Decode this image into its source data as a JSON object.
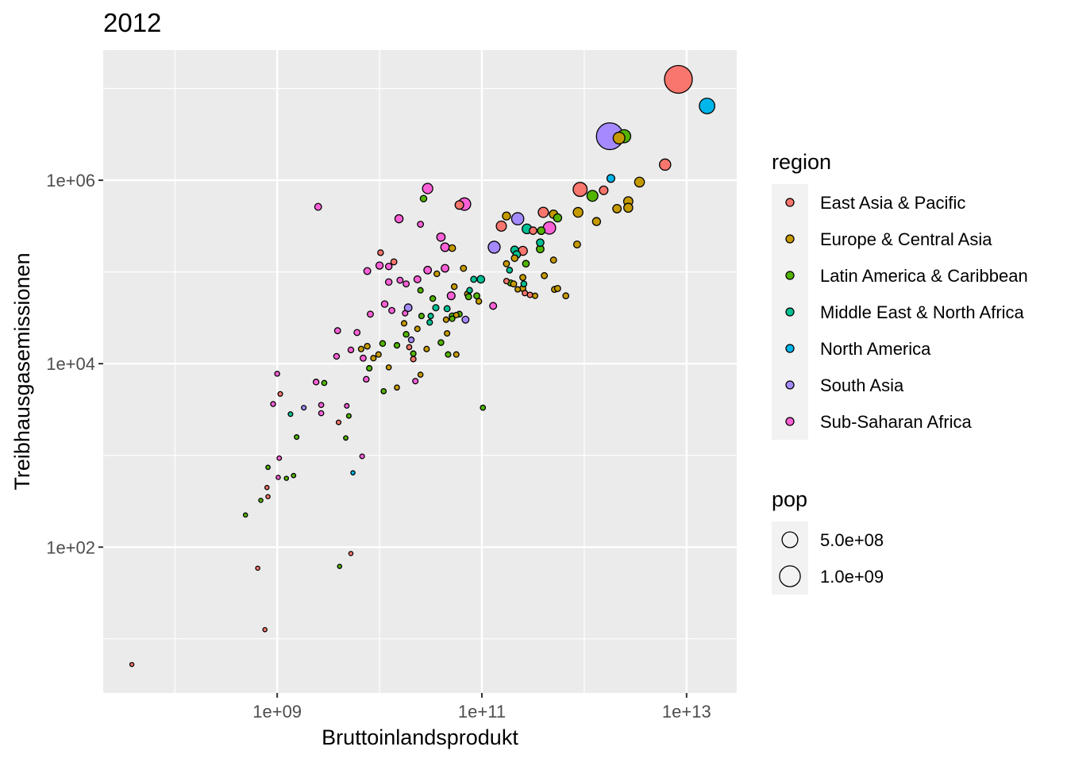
{
  "chart_data": {
    "type": "scatter",
    "title": "2012",
    "xlabel": "Bruttoinlandsprodukt",
    "ylabel": "Treibhausgasemissionen",
    "x_scale": "log10",
    "y_scale": "log10",
    "xlim_log10": [
      7.3,
      13.49
    ],
    "ylim_log10": [
      0.41,
      7.42
    ],
    "x_ticks": [
      {
        "log10": 9,
        "label": "1e+09"
      },
      {
        "log10": 11,
        "label": "1e+11"
      },
      {
        "log10": 13,
        "label": "1e+13"
      }
    ],
    "y_ticks": [
      {
        "log10": 2,
        "label": "1e+02"
      },
      {
        "log10": 4,
        "label": "1e+04"
      },
      {
        "log10": 6,
        "label": "1e+06"
      }
    ],
    "grid": true,
    "legend_placement": "right",
    "color_legend": {
      "title": "region",
      "entries": [
        {
          "key": "E",
          "label": "East Asia & Pacific",
          "color": "#F8766D"
        },
        {
          "key": "U",
          "label": "Europe & Central Asia",
          "color": "#C49A00"
        },
        {
          "key": "L",
          "label": "Latin America & Caribbean",
          "color": "#53B400"
        },
        {
          "key": "M",
          "label": "Middle East & North Africa",
          "color": "#00C094"
        },
        {
          "key": "N",
          "label": "North America",
          "color": "#00B6EB"
        },
        {
          "key": "S",
          "label": "South Asia",
          "color": "#A58AFF"
        },
        {
          "key": "A",
          "label": "Sub-Saharan Africa",
          "color": "#FB61D7"
        }
      ]
    },
    "size_legend": {
      "title": "pop",
      "entries": [
        {
          "value_millions": 500,
          "label": "5.0e+08"
        },
        {
          "value_millions": 1000,
          "label": "1.0e+09"
        }
      ]
    },
    "point_fields": [
      "log10_gdp",
      "log10_emissions",
      "region",
      "pop_millions"
    ],
    "points": [
      [
        12.92,
        7.1,
        "E",
        1350
      ],
      [
        13.2,
        6.81,
        "N",
        314
      ],
      [
        12.25,
        6.48,
        "S",
        1240
      ],
      [
        12.39,
        6.48,
        "L",
        200
      ],
      [
        12.34,
        6.46,
        "U",
        143
      ],
      [
        12.79,
        6.17,
        "E",
        127
      ],
      [
        12.26,
        6.02,
        "N",
        35
      ],
      [
        12.54,
        5.98,
        "U",
        80
      ],
      [
        11.96,
        5.9,
        "E",
        240
      ],
      [
        12.08,
        5.83,
        "L",
        115
      ],
      [
        12.19,
        5.89,
        "E",
        50
      ],
      [
        12.43,
        5.77,
        "U",
        65
      ],
      [
        12.43,
        5.7,
        "U",
        60
      ],
      [
        12.32,
        5.69,
        "U",
        47
      ],
      [
        11.94,
        5.65,
        "U",
        78
      ],
      [
        12.12,
        5.55,
        "U",
        38
      ],
      [
        11.93,
        5.3,
        "U",
        20
      ],
      [
        11.6,
        5.65,
        "E",
        90
      ],
      [
        11.7,
        5.63,
        "U",
        45
      ],
      [
        11.74,
        5.59,
        "L",
        40
      ],
      [
        11.66,
        5.48,
        "A",
        170
      ],
      [
        11.35,
        5.58,
        "S",
        160
      ],
      [
        11.24,
        5.61,
        "U",
        38
      ],
      [
        11.19,
        5.5,
        "E",
        90
      ],
      [
        11.44,
        5.47,
        "M",
        76
      ],
      [
        11.5,
        5.45,
        "E",
        29
      ],
      [
        11.58,
        5.45,
        "L",
        30
      ],
      [
        11.57,
        5.32,
        "M",
        28
      ],
      [
        11.57,
        5.25,
        "L",
        30
      ],
      [
        11.7,
        5.13,
        "U",
        10
      ],
      [
        11.12,
        5.27,
        "S",
        150
      ],
      [
        11.4,
        5.23,
        "E",
        60
      ],
      [
        11.32,
        5.24,
        "M",
        33
      ],
      [
        11.34,
        5.19,
        "M",
        30
      ],
      [
        11.32,
        5.15,
        "U",
        16
      ],
      [
        11.43,
        5.09,
        "L",
        17
      ],
      [
        11.24,
        5.09,
        "U",
        10
      ],
      [
        11.27,
        5.02,
        "M",
        8
      ],
      [
        11.61,
        4.96,
        "U",
        10
      ],
      [
        11.4,
        4.94,
        "U",
        10
      ],
      [
        11.41,
        4.87,
        "M",
        8
      ],
      [
        11.24,
        4.9,
        "E",
        5
      ],
      [
        11.28,
        4.88,
        "L",
        11
      ],
      [
        11.31,
        4.87,
        "U",
        10
      ],
      [
        11.4,
        4.82,
        "U",
        10
      ],
      [
        11.35,
        4.81,
        "U",
        5
      ],
      [
        11.42,
        4.77,
        "E",
        5
      ],
      [
        11.47,
        4.75,
        "E",
        5
      ],
      [
        11.52,
        4.74,
        "U",
        5
      ],
      [
        11.71,
        4.81,
        "U",
        10
      ],
      [
        11.74,
        4.82,
        "U",
        10
      ],
      [
        11.82,
        4.74,
        "U",
        9
      ],
      [
        10.83,
        5.74,
        "A",
        170
      ],
      [
        10.78,
        5.73,
        "E",
        50
      ],
      [
        10.47,
        5.91,
        "A",
        94
      ],
      [
        10.43,
        5.8,
        "L",
        15
      ],
      [
        10.19,
        5.58,
        "A",
        40
      ],
      [
        10.4,
        5.52,
        "A",
        10
      ],
      [
        10.6,
        5.38,
        "A",
        45
      ],
      [
        10.64,
        5.27,
        "A",
        50
      ],
      [
        10.71,
        5.26,
        "U",
        17
      ],
      [
        9.4,
        5.71,
        "A",
        20
      ],
      [
        10.01,
        5.21,
        "E",
        7
      ],
      [
        10.14,
        5.11,
        "E",
        10
      ],
      [
        10.0,
        5.07,
        "A",
        25
      ],
      [
        10.09,
        5.06,
        "A",
        15
      ],
      [
        9.88,
        5.01,
        "A",
        20
      ],
      [
        10.47,
        5.02,
        "A",
        30
      ],
      [
        10.64,
        5.04,
        "A",
        30
      ],
      [
        10.56,
        4.98,
        "U",
        7
      ],
      [
        10.82,
        5.04,
        "U",
        10
      ],
      [
        10.92,
        4.92,
        "M",
        10
      ],
      [
        10.99,
        4.92,
        "M",
        30
      ],
      [
        10.09,
        4.89,
        "A",
        15
      ],
      [
        10.2,
        4.91,
        "A",
        10
      ],
      [
        10.26,
        4.87,
        "A",
        10
      ],
      [
        10.37,
        4.92,
        "A",
        20
      ],
      [
        10.4,
        4.8,
        "L",
        5
      ],
      [
        10.73,
        4.84,
        "U",
        7
      ],
      [
        10.86,
        4.76,
        "U",
        10
      ],
      [
        10.88,
        4.8,
        "M",
        7
      ],
      [
        10.87,
        4.73,
        "L",
        10
      ],
      [
        10.95,
        4.74,
        "L",
        10
      ],
      [
        10.97,
        4.68,
        "U",
        7
      ],
      [
        10.7,
        4.74,
        "A",
        35
      ],
      [
        10.52,
        4.71,
        "L",
        7
      ],
      [
        10.55,
        4.61,
        "M",
        12
      ],
      [
        10.66,
        4.6,
        "M",
        10
      ],
      [
        10.71,
        4.52,
        "L",
        10
      ],
      [
        10.75,
        4.53,
        "U",
        5
      ],
      [
        10.78,
        4.54,
        "L",
        7
      ],
      [
        10.84,
        4.48,
        "S",
        20
      ],
      [
        10.71,
        4.49,
        "L",
        5
      ],
      [
        10.65,
        4.48,
        "U",
        5
      ],
      [
        10.5,
        4.52,
        "M",
        5
      ],
      [
        10.49,
        4.45,
        "M",
        6
      ],
      [
        11.11,
        4.63,
        "A",
        20
      ],
      [
        10.05,
        4.65,
        "A",
        15
      ],
      [
        10.12,
        4.58,
        "A",
        10
      ],
      [
        10.28,
        4.61,
        "S",
        30
      ],
      [
        10.25,
        4.55,
        "A",
        5
      ],
      [
        9.91,
        4.54,
        "A",
        10
      ],
      [
        10.24,
        4.44,
        "U",
        5
      ],
      [
        10.41,
        4.52,
        "L",
        5
      ],
      [
        10.26,
        4.32,
        "L",
        7
      ],
      [
        10.37,
        4.38,
        "U",
        5
      ],
      [
        10.31,
        4.26,
        "S",
        7
      ],
      [
        10.29,
        4.18,
        "E",
        3
      ],
      [
        10.17,
        4.2,
        "L",
        6
      ],
      [
        10.33,
        4.11,
        "L",
        5
      ],
      [
        10.33,
        4.05,
        "E",
        5
      ],
      [
        10.46,
        4.16,
        "U",
        5
      ],
      [
        10.6,
        4.23,
        "L",
        7
      ],
      [
        10.66,
        4.33,
        "U",
        5
      ],
      [
        10.67,
        4.1,
        "L",
        5
      ],
      [
        10.75,
        4.1,
        "U",
        5
      ],
      [
        10.03,
        4.22,
        "L",
        7
      ],
      [
        9.99,
        4.1,
        "U",
        5
      ],
      [
        9.88,
        4.19,
        "U",
        7
      ],
      [
        9.82,
        4.16,
        "U",
        5
      ],
      [
        9.72,
        4.15,
        "A",
        7
      ],
      [
        9.59,
        4.36,
        "A",
        10
      ],
      [
        9.78,
        4.34,
        "A",
        10
      ],
      [
        9.58,
        4.08,
        "A",
        7
      ],
      [
        9.84,
        4.06,
        "A",
        10
      ],
      [
        9.94,
        4.06,
        "U",
        5
      ],
      [
        9.9,
        3.95,
        "L",
        5
      ],
      [
        10.09,
        3.96,
        "U",
        3
      ],
      [
        9.87,
        3.83,
        "A",
        7
      ],
      [
        10.04,
        3.7,
        "L",
        3
      ],
      [
        10.17,
        3.74,
        "U",
        3
      ],
      [
        10.35,
        3.81,
        "A",
        5
      ],
      [
        10.4,
        3.88,
        "U",
        3
      ],
      [
        11.01,
        3.52,
        "L",
        3
      ],
      [
        9.0,
        3.89,
        "A",
        2
      ],
      [
        9.03,
        3.67,
        "E",
        1
      ],
      [
        8.96,
        3.56,
        "A",
        2
      ],
      [
        9.38,
        3.8,
        "A",
        7
      ],
      [
        9.46,
        3.79,
        "L",
        3
      ],
      [
        9.26,
        3.52,
        "S",
        1
      ],
      [
        9.43,
        3.55,
        "A",
        3
      ],
      [
        9.43,
        3.46,
        "A",
        3
      ],
      [
        9.68,
        3.54,
        "A",
        1
      ],
      [
        9.13,
        3.45,
        "M",
        1
      ],
      [
        9.7,
        3.43,
        "L",
        1
      ],
      [
        9.6,
        3.36,
        "E",
        1
      ],
      [
        9.19,
        3.2,
        "L",
        1
      ],
      [
        9.67,
        3.19,
        "L",
        0.5
      ],
      [
        9.83,
        2.99,
        "A",
        1
      ],
      [
        9.02,
        2.97,
        "A",
        0.5
      ],
      [
        8.91,
        2.87,
        "L",
        0.3
      ],
      [
        9.74,
        2.81,
        "N",
        0.1
      ],
      [
        9.16,
        2.78,
        "L",
        0.3
      ],
      [
        9.09,
        2.75,
        "L",
        0.1
      ],
      [
        9.01,
        2.76,
        "A",
        0.1
      ],
      [
        8.9,
        2.65,
        "E",
        0.1
      ],
      [
        8.91,
        2.55,
        "E",
        0.1
      ],
      [
        8.84,
        2.51,
        "L",
        0.1
      ],
      [
        8.69,
        2.35,
        "L",
        0.1
      ],
      [
        9.72,
        1.93,
        "E",
        0.1
      ],
      [
        9.61,
        1.79,
        "L",
        0.1
      ],
      [
        8.81,
        1.77,
        "E",
        0.1
      ],
      [
        8.88,
        1.1,
        "E",
        0.1
      ],
      [
        7.58,
        0.72,
        "E",
        0.01
      ]
    ]
  }
}
